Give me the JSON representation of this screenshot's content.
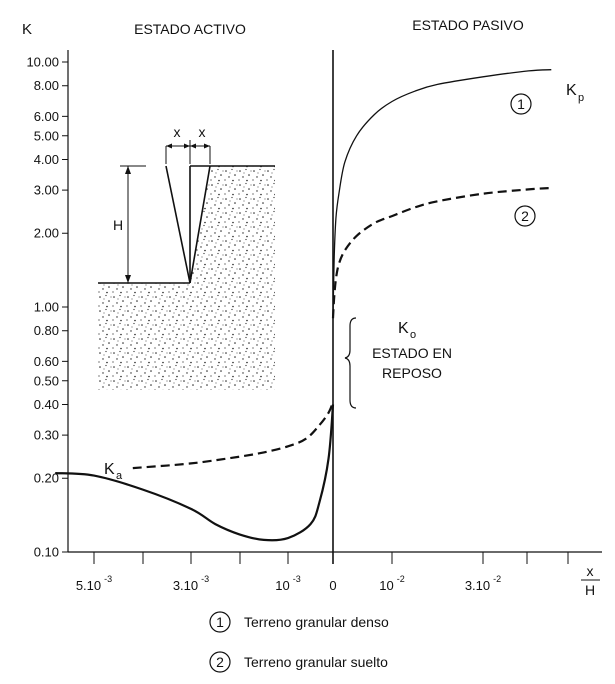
{
  "chart_data": {
    "type": "line",
    "y_axis": {
      "label": "K",
      "scale": "log",
      "range": [
        0.1,
        10
      ],
      "ticks": [
        {
          "value": 10,
          "label": "10.00"
        },
        {
          "value": 8,
          "label": "8.00"
        },
        {
          "value": 6,
          "label": "6.00"
        },
        {
          "value": 5,
          "label": "5.00"
        },
        {
          "value": 4,
          "label": "4.00"
        },
        {
          "value": 3,
          "label": "3.00"
        },
        {
          "value": 2,
          "label": "2.00"
        },
        {
          "value": 1,
          "label": "1.00"
        },
        {
          "value": 0.8,
          "label": "0.80"
        },
        {
          "value": 0.6,
          "label": "0.60"
        },
        {
          "value": 0.5,
          "label": "0.50"
        },
        {
          "value": 0.4,
          "label": "0.40"
        },
        {
          "value": 0.3,
          "label": "0.30"
        },
        {
          "value": 0.2,
          "label": "0.20"
        },
        {
          "value": 0.1,
          "label": "0.10"
        }
      ]
    },
    "x_axis": {
      "label_num": "x",
      "label_den": "H",
      "ticks": [
        {
          "value": -0.005,
          "base": "5.10",
          "exp": "-3"
        },
        {
          "value": -0.003,
          "base": "3.10",
          "exp": "-3"
        },
        {
          "value": -0.001,
          "base": "10",
          "exp": "-3"
        },
        {
          "value": 0,
          "base": "0",
          "exp": ""
        },
        {
          "value": 0.01,
          "base": "10",
          "exp": "-2"
        },
        {
          "value": 0.03,
          "base": "3.10",
          "exp": "-2"
        }
      ]
    },
    "region_labels": {
      "active": "ESTADO ACTIVO",
      "passive": "ESTADO PASIVO"
    },
    "annotations": {
      "kp_base": "K",
      "kp_sub": "p",
      "ka_base": "K",
      "ka_sub": "a",
      "ko_base": "K",
      "ko_sub": "o",
      "rest_line1": "ESTADO EN",
      "rest_line2": "REPOSO",
      "curve1_marker": "1",
      "curve2_marker": "2"
    },
    "series": [
      {
        "key": "1",
        "style": "solid",
        "passive": [
          [
            0,
            0.9
          ],
          [
            0.0002,
            1.6
          ],
          [
            0.0005,
            2.3
          ],
          [
            0.001,
            2.9
          ],
          [
            0.002,
            3.9
          ],
          [
            0.004,
            5.0
          ],
          [
            0.007,
            6.1
          ],
          [
            0.01,
            6.9
          ],
          [
            0.015,
            7.6
          ],
          [
            0.02,
            8.1
          ],
          [
            0.03,
            8.7
          ],
          [
            0.04,
            9.2
          ],
          [
            0.045,
            9.3
          ]
        ],
        "active": [
          [
            -0.0058,
            0.21
          ],
          [
            -0.005,
            0.205
          ],
          [
            -0.004,
            0.18
          ],
          [
            -0.003,
            0.15
          ],
          [
            -0.0025,
            0.13
          ],
          [
            -0.002,
            0.118
          ],
          [
            -0.0015,
            0.112
          ],
          [
            -0.001,
            0.114
          ],
          [
            -0.0005,
            0.13
          ],
          [
            -0.0003,
            0.16
          ],
          [
            -0.0001,
            0.24
          ],
          [
            0,
            0.4
          ]
        ]
      },
      {
        "key": "2",
        "style": "dashed",
        "passive": [
          [
            0,
            0.9
          ],
          [
            0.0002,
            1.1
          ],
          [
            0.0005,
            1.3
          ],
          [
            0.001,
            1.5
          ],
          [
            0.002,
            1.7
          ],
          [
            0.004,
            1.95
          ],
          [
            0.007,
            2.2
          ],
          [
            0.01,
            2.35
          ],
          [
            0.015,
            2.55
          ],
          [
            0.02,
            2.7
          ],
          [
            0.03,
            2.9
          ],
          [
            0.04,
            3.02
          ],
          [
            0.045,
            3.06
          ]
        ],
        "active": [
          [
            -0.0042,
            0.22
          ],
          [
            -0.003,
            0.23
          ],
          [
            -0.002,
            0.245
          ],
          [
            -0.0015,
            0.255
          ],
          [
            -0.001,
            0.27
          ],
          [
            -0.0006,
            0.29
          ],
          [
            -0.0003,
            0.33
          ],
          [
            -0.0001,
            0.37
          ],
          [
            0,
            0.41
          ]
        ]
      }
    ]
  },
  "legend": [
    {
      "marker": "1",
      "text": "Terreno granular denso"
    },
    {
      "marker": "2",
      "text": "Terreno granular suelto"
    }
  ],
  "diagram": {
    "height_label": "H",
    "disp_left": "x",
    "disp_right": "x"
  }
}
